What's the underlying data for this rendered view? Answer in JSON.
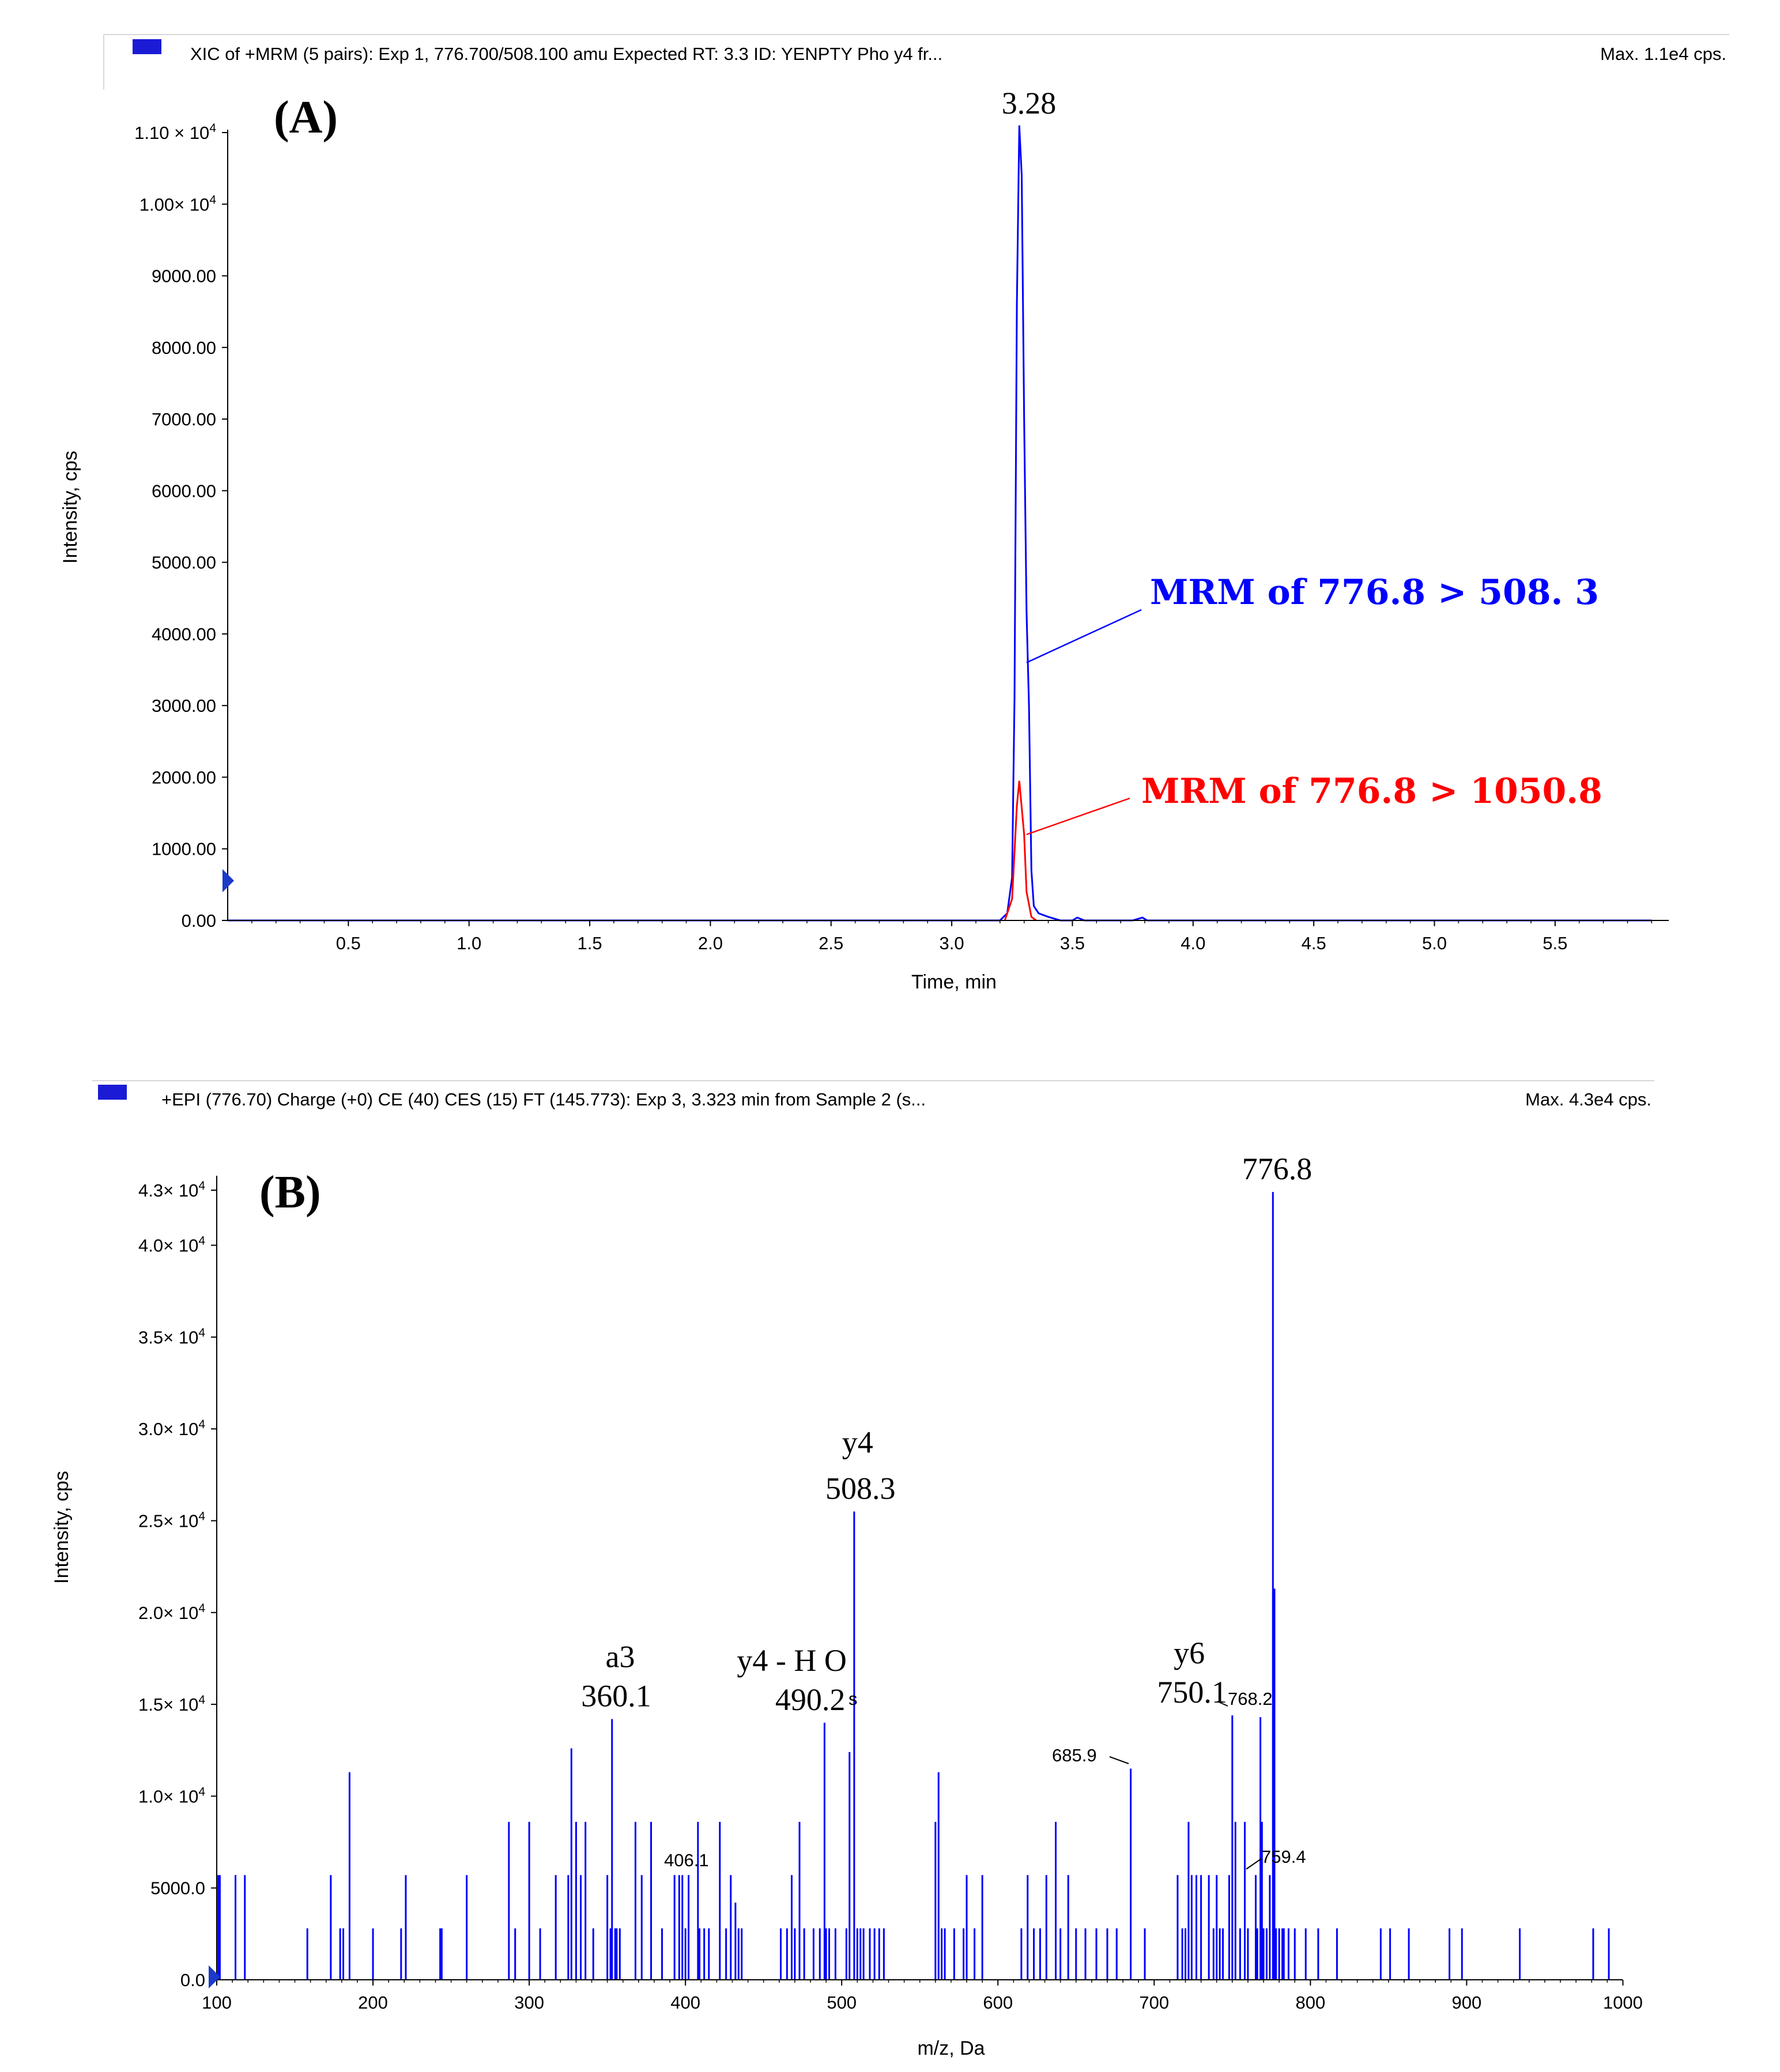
{
  "colors": {
    "blue": "#0000ff",
    "red": "#ff0000",
    "axis": "#000000",
    "marker": "#1b1bd6"
  },
  "chart_data": [
    {
      "type": "line",
      "panel_label": "(A)",
      "header": "XIC of +MRM (5 pairs): Exp 1, 776.700/508.100 amu Expected RT: 3.3 ID: YENPTY Pho y4 fr...",
      "max_label": "Max. 1.1e4 cps.",
      "xlabel": "Time, min",
      "ylabel": "Intensity, cps",
      "xlim": [
        0,
        6.0
      ],
      "ylim": [
        0,
        11000
      ],
      "x_ticks": [
        "0.5",
        "1.0",
        "1.5",
        "2.0",
        "2.5",
        "3.0",
        "3.5",
        "4.0",
        "4.5",
        "5.0",
        "5.5"
      ],
      "x_tick_values": [
        0.5,
        1.0,
        1.5,
        2.0,
        2.5,
        3.0,
        3.5,
        4.0,
        4.5,
        5.0,
        5.5
      ],
      "y_ticks": [
        {
          "value": 11000,
          "mant": "1.10 × 10",
          "exp": "4"
        },
        {
          "value": 10000,
          "mant": "1.00× 10",
          "exp": "4"
        },
        {
          "value": 9000,
          "mant": "9000.00",
          "exp": ""
        },
        {
          "value": 8000,
          "mant": "8000.00",
          "exp": ""
        },
        {
          "value": 7000,
          "mant": "7000.00",
          "exp": ""
        },
        {
          "value": 6000,
          "mant": "6000.00",
          "exp": ""
        },
        {
          "value": 5000,
          "mant": "5000.00",
          "exp": ""
        },
        {
          "value": 4000,
          "mant": "4000.00",
          "exp": ""
        },
        {
          "value": 3000,
          "mant": "3000.00",
          "exp": ""
        },
        {
          "value": 2000,
          "mant": "2000.00",
          "exp": ""
        },
        {
          "value": 1000,
          "mant": "1000.00",
          "exp": ""
        },
        {
          "value": 0,
          "mant": "0.00",
          "exp": ""
        }
      ],
      "peak_label": "3.28",
      "series": [
        {
          "name": "MRM of 776.8 > 508. 3",
          "color_key": "blue",
          "x": [
            0.0,
            3.2,
            3.23,
            3.25,
            3.26,
            3.27,
            3.28,
            3.29,
            3.3,
            3.31,
            3.32,
            3.33,
            3.34,
            3.36,
            3.4,
            3.45,
            3.5,
            3.52,
            3.55,
            3.75,
            3.79,
            3.81,
            5.9
          ],
          "y": [
            0,
            0,
            100,
            600,
            3100,
            8600,
            11100,
            10400,
            7000,
            4300,
            3000,
            700,
            200,
            100,
            50,
            0,
            0,
            40,
            0,
            0,
            40,
            0,
            0
          ]
        },
        {
          "name": "MRM of 776.8 > 1050.8",
          "color_key": "red",
          "x": [
            3.22,
            3.25,
            3.27,
            3.28,
            3.3,
            3.31,
            3.33,
            3.35
          ],
          "y": [
            0,
            300,
            1600,
            1950,
            1200,
            400,
            50,
            0
          ]
        }
      ],
      "annotations": [
        {
          "text": "MRM of 776.8 > 508. 3",
          "color_key": "blue",
          "point": [
            3.31,
            3600
          ]
        },
        {
          "text": "MRM of 776.8 > 1050.8",
          "color_key": "red",
          "point": [
            3.31,
            1200
          ]
        }
      ]
    },
    {
      "type": "bar",
      "panel_label": "(B)",
      "header": "+EPI (776.70) Charge (+0) CE (40) CES (15) FT (145.773): Exp 3, 3.323 min from Sample 2 (s...",
      "max_label": "Max. 4.3e4 cps.",
      "xlabel": "m/z, Da",
      "ylabel": "Intensity, cps",
      "xlim": [
        100,
        1000
      ],
      "ylim": [
        0,
        43000
      ],
      "x_ticks": [
        "100",
        "200",
        "300",
        "400",
        "500",
        "600",
        "700",
        "800",
        "900",
        "1000"
      ],
      "x_tick_values": [
        100,
        200,
        300,
        400,
        500,
        600,
        700,
        800,
        900,
        1000
      ],
      "y_ticks": [
        {
          "value": 43000,
          "mant": "4.3× 10",
          "exp": "4"
        },
        {
          "value": 40000,
          "mant": "4.0× 10",
          "exp": "4"
        },
        {
          "value": 35000,
          "mant": "3.5× 10",
          "exp": "4"
        },
        {
          "value": 30000,
          "mant": "3.0× 10",
          "exp": "4"
        },
        {
          "value": 25000,
          "mant": "2.5× 10",
          "exp": "4"
        },
        {
          "value": 20000,
          "mant": "2.0× 10",
          "exp": "4"
        },
        {
          "value": 15000,
          "mant": "1.5× 10",
          "exp": "4"
        },
        {
          "value": 10000,
          "mant": "1.0× 10",
          "exp": "4"
        },
        {
          "value": 5000,
          "mant": "5000.0",
          "exp": ""
        },
        {
          "value": 0,
          "mant": "0.0",
          "exp": ""
        }
      ],
      "mz": [
        101,
        102,
        112,
        118,
        158,
        173,
        179,
        181,
        185,
        200,
        218,
        221,
        243,
        244,
        260,
        287,
        291,
        300,
        307,
        317,
        325,
        327,
        330,
        333,
        336,
        341,
        350,
        352,
        353,
        355,
        356,
        358,
        368,
        372,
        378,
        385,
        393,
        396,
        398,
        400,
        402,
        408,
        409,
        412,
        415,
        422,
        426,
        429,
        432,
        434,
        436,
        461,
        465,
        468,
        470,
        473,
        476,
        482,
        486,
        489,
        490,
        492,
        496,
        503,
        505,
        508,
        510,
        512,
        514,
        518,
        521,
        524,
        527,
        560,
        562,
        564,
        566,
        572,
        578,
        580,
        585,
        590,
        615,
        619,
        623,
        627,
        631,
        637,
        640,
        645,
        650,
        656,
        663,
        670,
        676,
        685,
        694,
        715,
        718,
        720,
        722,
        724,
        727,
        730,
        735,
        738,
        740,
        742,
        744,
        748,
        750,
        752,
        755,
        758,
        760,
        765,
        766,
        768,
        769,
        770,
        772,
        774,
        776,
        777,
        778,
        780,
        782,
        783,
        786,
        790,
        797,
        805,
        817,
        845,
        851,
        863,
        889,
        897,
        934,
        981,
        991
      ],
      "intensity": [
        5700,
        5700,
        5700,
        5700,
        2800,
        5700,
        2800,
        2800,
        11300,
        2800,
        2800,
        5700,
        2800,
        2800,
        5700,
        8600,
        2800,
        8600,
        2800,
        5700,
        5700,
        12600,
        8600,
        5700,
        8600,
        2800,
        5700,
        2800,
        14200,
        2800,
        2800,
        2800,
        8600,
        5700,
        8600,
        2800,
        5700,
        5700,
        5700,
        2800,
        5700,
        8600,
        2800,
        2800,
        2800,
        8600,
        2800,
        5700,
        4200,
        2800,
        2800,
        2800,
        2800,
        5700,
        2800,
        8600,
        2800,
        2800,
        2800,
        14000,
        2800,
        2800,
        2800,
        2800,
        12400,
        25500,
        2800,
        2800,
        2800,
        2800,
        2800,
        2800,
        2800,
        8600,
        11300,
        2800,
        2800,
        2800,
        2800,
        5700,
        2800,
        5700,
        2800,
        5700,
        2800,
        2800,
        5700,
        8600,
        2800,
        5700,
        2800,
        2800,
        2800,
        2800,
        2800,
        11500,
        2800,
        5700,
        2800,
        2800,
        8600,
        5700,
        5700,
        5700,
        5700,
        2800,
        5700,
        2800,
        2800,
        5700,
        14400,
        8600,
        2800,
        8600,
        2800,
        5700,
        2800,
        14300,
        8600,
        2800,
        2800,
        5700,
        42900,
        21300,
        2800,
        2800,
        2800,
        2800,
        2800,
        2800,
        2800,
        2800,
        2800,
        2800,
        2800,
        2800,
        2800,
        2800,
        2800,
        2800,
        2800
      ],
      "labels": [
        {
          "mz": 360.1,
          "y": 14200,
          "top": "a3",
          "value": "360.1"
        },
        {
          "mz": 490.2,
          "y": 14000,
          "top": "y4 - H O",
          "value": "490.2"
        },
        {
          "mz": 508.3,
          "y": 25500,
          "top": "y4",
          "value": "508.3"
        },
        {
          "mz": 750.1,
          "y": 14400,
          "top": "y6",
          "value": "750.1"
        },
        {
          "mz": 776.8,
          "y": 42900,
          "top": "",
          "value": "776.8"
        }
      ],
      "small_labels": [
        {
          "text": "406.1"
        },
        {
          "text": "685.9"
        },
        {
          "text": "768.2"
        },
        {
          "text": "759.4"
        },
        {
          "text": "s"
        }
      ]
    }
  ]
}
